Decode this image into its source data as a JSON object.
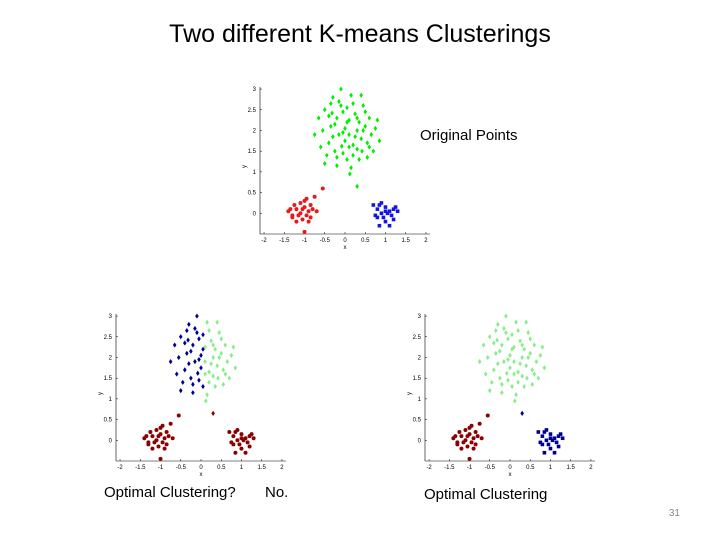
{
  "slide": {
    "title": "Two different K-means Clusterings",
    "page_number": "31"
  },
  "captions": {
    "original": "Original Points",
    "suboptimal_a": "Optimal Clustering?",
    "suboptimal_b": "No.",
    "optimal": "Optimal Clustering"
  },
  "axes": {
    "xlabel": "x",
    "ylabel": "y",
    "xlim": [
      -2.1,
      2.1
    ],
    "ylim": [
      -0.5,
      3.05
    ],
    "xticks": [
      -2,
      -1.5,
      -1,
      -0.5,
      0,
      0.5,
      1,
      1.5,
      2
    ],
    "yticks": [
      0,
      0.5,
      1,
      1.5,
      2,
      2.5,
      3
    ]
  },
  "point_sets": {
    "top": [
      [
        -0.35,
        2.1
      ],
      [
        -0.2,
        2.3
      ],
      [
        0.1,
        1.9
      ],
      [
        0.3,
        2.0
      ],
      [
        -0.1,
        2.6
      ],
      [
        0.05,
        2.2
      ],
      [
        0.25,
        2.4
      ],
      [
        0.4,
        1.8
      ],
      [
        -0.4,
        1.7
      ],
      [
        -0.25,
        1.5
      ],
      [
        0.1,
        1.6
      ],
      [
        0.2,
        1.4
      ],
      [
        0.35,
        2.2
      ],
      [
        0.5,
        2.1
      ],
      [
        0.55,
        1.7
      ],
      [
        -0.5,
        2.5
      ],
      [
        -0.3,
        2.8
      ],
      [
        0.15,
        2.85
      ],
      [
        -0.15,
        1.9
      ],
      [
        0.0,
        1.75
      ],
      [
        0.45,
        2.6
      ],
      [
        0.6,
        2.3
      ],
      [
        -0.55,
        2.0
      ],
      [
        -0.45,
        1.4
      ],
      [
        0.05,
        1.3
      ],
      [
        -0.05,
        2.45
      ],
      [
        0.3,
        1.55
      ],
      [
        0.65,
        1.9
      ],
      [
        -0.2,
        1.15
      ],
      [
        0.2,
        2.65
      ],
      [
        0.7,
        1.5
      ],
      [
        -0.65,
        2.3
      ],
      [
        -0.1,
        3.0
      ],
      [
        0.15,
        1.1
      ],
      [
        0.5,
        2.45
      ],
      [
        -0.35,
        2.65
      ],
      [
        0.0,
        2.05
      ],
      [
        -0.25,
        2.15
      ],
      [
        0.35,
        1.3
      ],
      [
        0.85,
        1.75
      ],
      [
        -0.75,
        1.9
      ],
      [
        -0.05,
        1.45
      ],
      [
        0.25,
        1.85
      ],
      [
        0.4,
        2.85
      ],
      [
        0.1,
        2.25
      ],
      [
        -0.6,
        1.6
      ],
      [
        0.55,
        1.35
      ],
      [
        0.75,
        2.05
      ],
      [
        -0.15,
        2.7
      ],
      [
        0.2,
        1.65
      ],
      [
        -0.4,
        2.35
      ],
      [
        -0.3,
        1.85
      ],
      [
        0.05,
        2.55
      ],
      [
        0.6,
        1.6
      ],
      [
        -0.05,
        1.95
      ],
      [
        0.3,
        2.3
      ],
      [
        -0.2,
        1.35
      ],
      [
        0.45,
        2.0
      ],
      [
        -0.5,
        1.2
      ],
      [
        0.8,
        2.25
      ],
      [
        0.12,
        0.95
      ],
      [
        -0.08,
        1.62
      ],
      [
        0.42,
        1.5
      ],
      [
        -0.32,
        2.42
      ]
    ],
    "left": [
      [
        -1.4,
        0.05
      ],
      [
        -1.3,
        -0.1
      ],
      [
        -1.2,
        0.1
      ],
      [
        -1.1,
        0.0
      ],
      [
        -1.0,
        0.15
      ],
      [
        -0.9,
        0.05
      ],
      [
        -1.25,
        0.2
      ],
      [
        -1.05,
        -0.15
      ],
      [
        -0.95,
        -0.05
      ],
      [
        -0.85,
        0.2
      ],
      [
        -1.15,
        -0.05
      ],
      [
        -1.35,
        0.1
      ],
      [
        -0.8,
        0.1
      ],
      [
        -1.0,
        0.3
      ],
      [
        -0.9,
        -0.2
      ],
      [
        -1.1,
        0.25
      ],
      [
        -0.7,
        0.05
      ],
      [
        -1.2,
        -0.2
      ],
      [
        -0.95,
        0.35
      ],
      [
        -1.05,
        0.1
      ],
      [
        -1.0,
        -0.45
      ],
      [
        -0.75,
        0.4
      ],
      [
        -0.55,
        0.6
      ],
      [
        -1.3,
        -0.05
      ],
      [
        -0.85,
        -0.1
      ]
    ],
    "right": [
      [
        0.7,
        0.2
      ],
      [
        0.8,
        0.1
      ],
      [
        0.9,
        0.0
      ],
      [
        1.0,
        0.15
      ],
      [
        1.1,
        0.05
      ],
      [
        1.2,
        0.1
      ],
      [
        0.75,
        -0.05
      ],
      [
        0.85,
        0.2
      ],
      [
        0.95,
        -0.1
      ],
      [
        1.05,
        0.0
      ],
      [
        1.15,
        -0.05
      ],
      [
        1.25,
        0.15
      ],
      [
        0.9,
        0.25
      ],
      [
        1.0,
        -0.2
      ],
      [
        1.1,
        -0.3
      ],
      [
        1.2,
        -0.15
      ],
      [
        0.8,
        -0.1
      ],
      [
        1.3,
        0.05
      ],
      [
        1.0,
        0.05
      ],
      [
        0.85,
        -0.3
      ]
    ],
    "bridge": [
      [
        0.3,
        0.65
      ]
    ]
  },
  "colors": {
    "top_orig": "#00ee00",
    "left_orig": "#e61a1a",
    "right_orig": "#1414e6",
    "light_green": "#88ee88",
    "dark_blue": "#000090",
    "dark_red": "#8b0000",
    "axis": "#000000"
  },
  "chart_data": [
    {
      "type": "scatter",
      "title": "",
      "xlabel": "x",
      "ylabel": "y",
      "series": [
        {
          "points_ref": "top",
          "color_ref": "top_orig",
          "marker": "diamond"
        },
        {
          "points_ref": "bridge",
          "color_ref": "top_orig",
          "marker": "diamond"
        },
        {
          "points_ref": "left",
          "color_ref": "left_orig",
          "marker": "circle"
        },
        {
          "points_ref": "right",
          "color_ref": "right_orig",
          "marker": "square"
        }
      ]
    },
    {
      "type": "scatter",
      "title": "",
      "xlabel": "x",
      "ylabel": "y",
      "split_x": 0.05,
      "series": [
        {
          "points_ref": "top",
          "split": "left_part",
          "color_ref": "dark_blue",
          "marker": "diamond"
        },
        {
          "points_ref": "top",
          "split": "right_part",
          "color_ref": "light_green",
          "marker": "diamond"
        },
        {
          "points_ref": "left",
          "color_ref": "dark_red",
          "marker": "circle"
        },
        {
          "points_ref": "right",
          "color_ref": "dark_red",
          "marker": "circle"
        },
        {
          "points_ref": "bridge",
          "color_ref": "dark_red",
          "marker": "diamond"
        }
      ]
    },
    {
      "type": "scatter",
      "title": "",
      "xlabel": "x",
      "ylabel": "y",
      "series": [
        {
          "points_ref": "top",
          "color_ref": "light_green",
          "marker": "diamond"
        },
        {
          "points_ref": "left",
          "color_ref": "dark_red",
          "marker": "circle"
        },
        {
          "points_ref": "right",
          "color_ref": "dark_blue",
          "marker": "square"
        },
        {
          "points_ref": "bridge",
          "color_ref": "dark_blue",
          "marker": "diamond"
        }
      ]
    }
  ]
}
